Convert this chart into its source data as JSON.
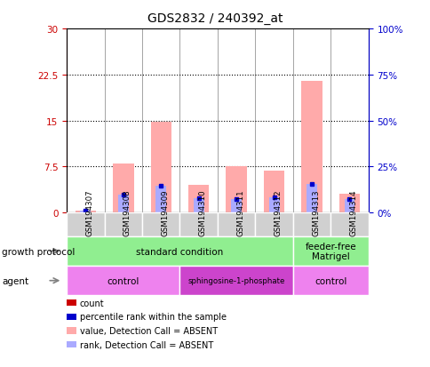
{
  "title": "GDS2832 / 240392_at",
  "samples": [
    "GSM194307",
    "GSM194308",
    "GSM194309",
    "GSM194310",
    "GSM194311",
    "GSM194312",
    "GSM194313",
    "GSM194314"
  ],
  "count_values": [
    0.15,
    0.15,
    0.15,
    0.15,
    0.15,
    0.15,
    0.15,
    0.15
  ],
  "absent_value_bars": [
    0.3,
    8.0,
    14.8,
    4.5,
    7.5,
    6.8,
    21.5,
    3.0
  ],
  "absent_rank_bars": [
    1.2,
    9.5,
    14.5,
    7.8,
    7.5,
    8.5,
    15.5,
    7.5
  ],
  "ylim_left": [
    0,
    30
  ],
  "ylim_right": [
    0,
    100
  ],
  "yticks_left": [
    0,
    7.5,
    15,
    22.5,
    30
  ],
  "ytick_labels_left": [
    "0",
    "7.5",
    "15",
    "22.5",
    "30"
  ],
  "yticks_right": [
    0,
    25,
    50,
    75,
    100
  ],
  "ytick_labels_right": [
    "0%",
    "25%",
    "50%",
    "75%",
    "100%"
  ],
  "growth_protocol_labels": [
    {
      "text": "standard condition",
      "start": 0,
      "end": 6,
      "color": "#90ee90"
    },
    {
      "text": "feeder-free\nMatrigel",
      "start": 6,
      "end": 8,
      "color": "#90ee90"
    }
  ],
  "agent_labels": [
    {
      "text": "control",
      "start": 0,
      "end": 3,
      "color": "#ee82ee"
    },
    {
      "text": "sphingosine-1-phosphate",
      "start": 3,
      "end": 6,
      "color": "#cc44cc"
    },
    {
      "text": "control",
      "start": 6,
      "end": 8,
      "color": "#ee82ee"
    }
  ],
  "left_axis_color": "#cc0000",
  "right_axis_color": "#0000cc",
  "bar_absent_value_color": "#ffaaaa",
  "bar_absent_rank_color": "#aaaaff",
  "count_color": "#cc0000",
  "percentile_color": "#0000cc",
  "grid_color": "black",
  "background_color": "white",
  "legend_items": [
    {
      "color": "#cc0000",
      "label": "count"
    },
    {
      "color": "#0000cc",
      "label": "percentile rank within the sample"
    },
    {
      "color": "#ffaaaa",
      "label": "value, Detection Call = ABSENT"
    },
    {
      "color": "#aaaaff",
      "label": "rank, Detection Call = ABSENT"
    }
  ]
}
